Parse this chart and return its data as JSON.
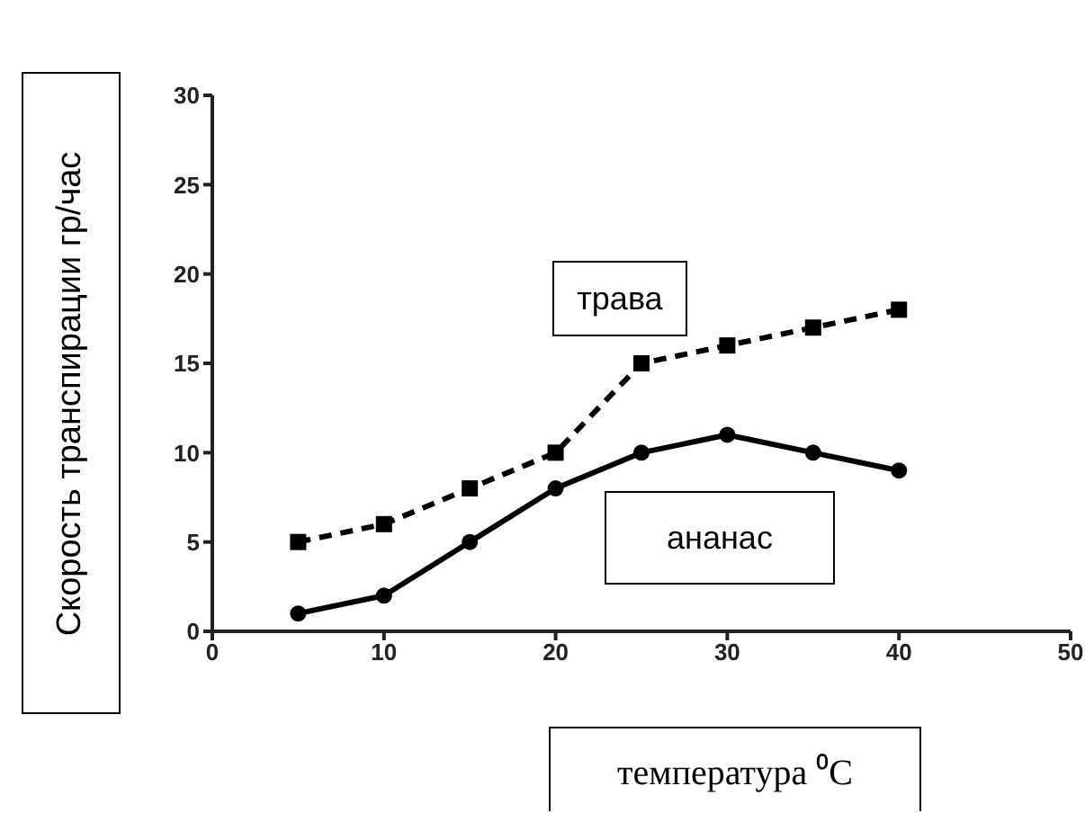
{
  "chart_data": {
    "type": "line",
    "xlabel": "температура ⁰C",
    "ylabel": "Скорость транспирации гр/час",
    "x": [
      5,
      10,
      15,
      20,
      25,
      30,
      35,
      40
    ],
    "series": [
      {
        "name": "трава",
        "color": "#000000",
        "marker": "square",
        "line_style": "dashed",
        "values": [
          5,
          6,
          8,
          10,
          15,
          16,
          17,
          18
        ]
      },
      {
        "name": "ананас",
        "color": "#000000",
        "marker": "circle",
        "line_style": "solid",
        "values": [
          1,
          2,
          5,
          8,
          10,
          11,
          10,
          9
        ]
      }
    ],
    "xlim": [
      0,
      50
    ],
    "xticks": [
      0,
      10,
      20,
      30,
      40,
      50
    ],
    "ylim": [
      0,
      30
    ],
    "yticks": [
      0,
      5,
      10,
      15,
      20,
      25,
      30
    ],
    "grid": false,
    "legend": false
  }
}
